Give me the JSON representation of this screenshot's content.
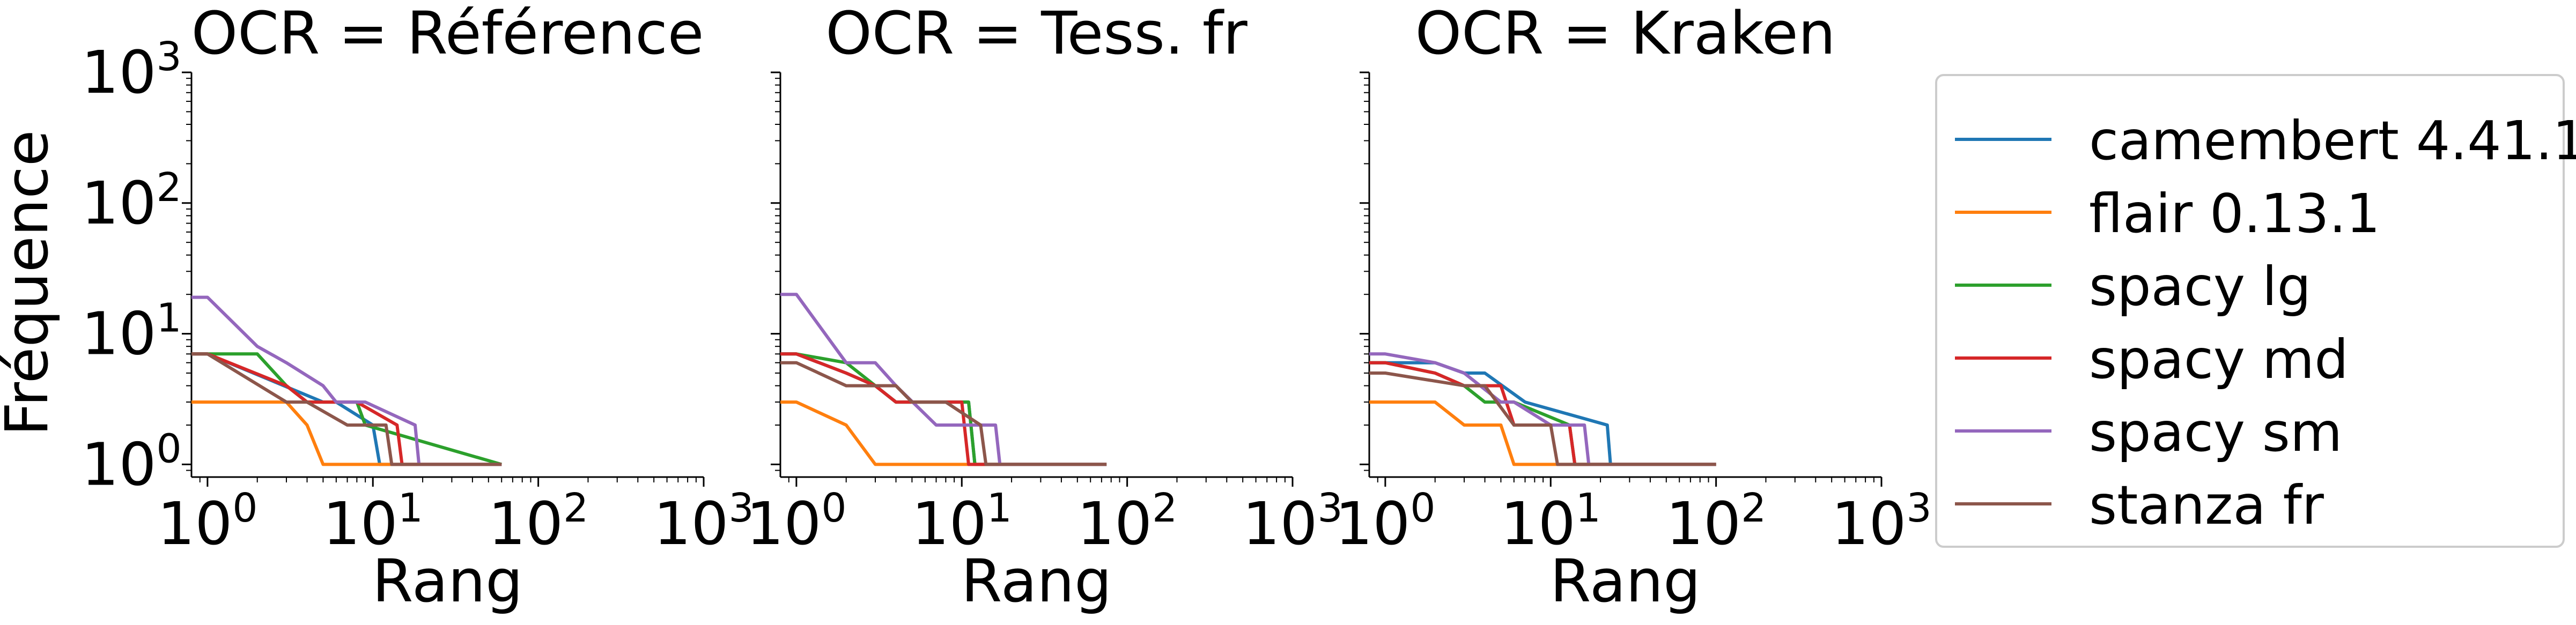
{
  "figure": {
    "ylabel": "Fréquence",
    "xlabel": "Rang",
    "tick_labels": [
      "10",
      "10",
      "10",
      "10"
    ],
    "tick_exponents": [
      "0",
      "1",
      "2",
      "3"
    ]
  },
  "legend": {
    "placement": "right",
    "entries": [
      "camembert 4.41.1",
      "flair 0.13.1",
      "spacy lg",
      "spacy md",
      "spacy sm",
      "stanza fr"
    ]
  },
  "colors": {
    "camembert 4.41.1": "#1f77b4",
    "flair 0.13.1": "#ff7f0e",
    "spacy lg": "#2ca02c",
    "spacy md": "#d62728",
    "spacy sm": "#9467bd",
    "stanza fr": "#8c564b"
  },
  "chart_data": [
    {
      "type": "line",
      "title": "OCR = Référence",
      "xlabel": "Rang",
      "ylabel": "Fréquence",
      "xscale": "log",
      "yscale": "log",
      "xlim": [
        0.8,
        1000
      ],
      "ylim": [
        0.8,
        1000
      ],
      "grid": false,
      "series": [
        {
          "name": "camembert 4.41.1",
          "x": [
            1,
            5,
            6,
            10,
            11,
            60
          ],
          "y": [
            7,
            3,
            3,
            2,
            1,
            1
          ]
        },
        {
          "name": "flair 0.13.1",
          "x": [
            1,
            3,
            4,
            5,
            60
          ],
          "y": [
            3,
            3,
            2,
            1,
            1
          ]
        },
        {
          "name": "spacy lg",
          "x": [
            1,
            2,
            3,
            4,
            8,
            9,
            60
          ],
          "y": [
            7,
            7,
            4,
            3,
            3,
            2,
            1
          ]
        },
        {
          "name": "spacy md",
          "x": [
            1,
            3,
            4,
            8,
            14,
            15,
            60
          ],
          "y": [
            7,
            4,
            3,
            3,
            2,
            1,
            1
          ]
        },
        {
          "name": "spacy sm",
          "x": [
            1,
            2,
            3,
            5,
            6,
            9,
            18,
            19,
            60
          ],
          "y": [
            19,
            8,
            6,
            4,
            3,
            3,
            2,
            1,
            1
          ]
        },
        {
          "name": "stanza fr",
          "x": [
            1,
            3,
            4,
            7,
            12,
            13,
            60
          ],
          "y": [
            7,
            3,
            3,
            2,
            2,
            1,
            1
          ]
        }
      ]
    },
    {
      "type": "line",
      "title": "OCR = Tess. fr",
      "xlabel": "Rang",
      "xscale": "log",
      "yscale": "log",
      "xlim": [
        0.8,
        1000
      ],
      "ylim": [
        0.8,
        1000
      ],
      "grid": false,
      "series": [
        {
          "name": "camembert 4.41.1",
          "x": [
            1,
            2,
            3,
            4,
            11,
            12,
            75
          ],
          "y": [
            7,
            5,
            4,
            3,
            3,
            1,
            1
          ]
        },
        {
          "name": "flair 0.13.1",
          "x": [
            1,
            2,
            3,
            75
          ],
          "y": [
            3,
            2,
            1,
            1
          ]
        },
        {
          "name": "spacy lg",
          "x": [
            1,
            2,
            3,
            4,
            11,
            12,
            75
          ],
          "y": [
            7,
            6,
            4,
            3,
            3,
            1,
            1
          ]
        },
        {
          "name": "spacy md",
          "x": [
            1,
            2,
            3,
            4,
            10,
            11,
            75
          ],
          "y": [
            7,
            5,
            4,
            3,
            3,
            1,
            1
          ]
        },
        {
          "name": "spacy sm",
          "x": [
            1,
            2,
            3,
            4,
            7,
            16,
            17,
            75
          ],
          "y": [
            20,
            6,
            6,
            4,
            2,
            2,
            1,
            1
          ]
        },
        {
          "name": "stanza fr",
          "x": [
            1,
            2,
            4,
            5,
            8,
            13,
            14,
            75
          ],
          "y": [
            6,
            4,
            4,
            3,
            3,
            2,
            1,
            1
          ]
        }
      ]
    },
    {
      "type": "line",
      "title": "OCR = Kraken",
      "xlabel": "Rang",
      "xscale": "log",
      "yscale": "log",
      "xlim": [
        0.8,
        1000
      ],
      "ylim": [
        0.8,
        1000
      ],
      "grid": false,
      "series": [
        {
          "name": "camembert 4.41.1",
          "x": [
            1,
            2,
            3,
            4,
            7,
            22,
            23,
            100
          ],
          "y": [
            6,
            6,
            5,
            5,
            3,
            2,
            1,
            1
          ]
        },
        {
          "name": "flair 0.13.1",
          "x": [
            1,
            2,
            3,
            5,
            6,
            100
          ],
          "y": [
            3,
            3,
            2,
            2,
            1,
            1
          ]
        },
        {
          "name": "spacy lg",
          "x": [
            1,
            2,
            3,
            4,
            6,
            13,
            14,
            100
          ],
          "y": [
            6,
            5,
            4,
            3,
            3,
            2,
            1,
            1
          ]
        },
        {
          "name": "spacy md",
          "x": [
            1,
            2,
            3,
            5,
            6,
            13,
            14,
            100
          ],
          "y": [
            6,
            5,
            4,
            4,
            2,
            2,
            1,
            1
          ]
        },
        {
          "name": "spacy sm",
          "x": [
            1,
            2,
            3,
            5,
            6,
            10,
            16,
            17,
            100
          ],
          "y": [
            7,
            6,
            5,
            3,
            3,
            2,
            2,
            1,
            1
          ]
        },
        {
          "name": "stanza fr",
          "x": [
            1,
            3,
            4,
            6,
            10,
            11,
            100
          ],
          "y": [
            5,
            4,
            4,
            2,
            2,
            1,
            1
          ]
        }
      ]
    }
  ]
}
